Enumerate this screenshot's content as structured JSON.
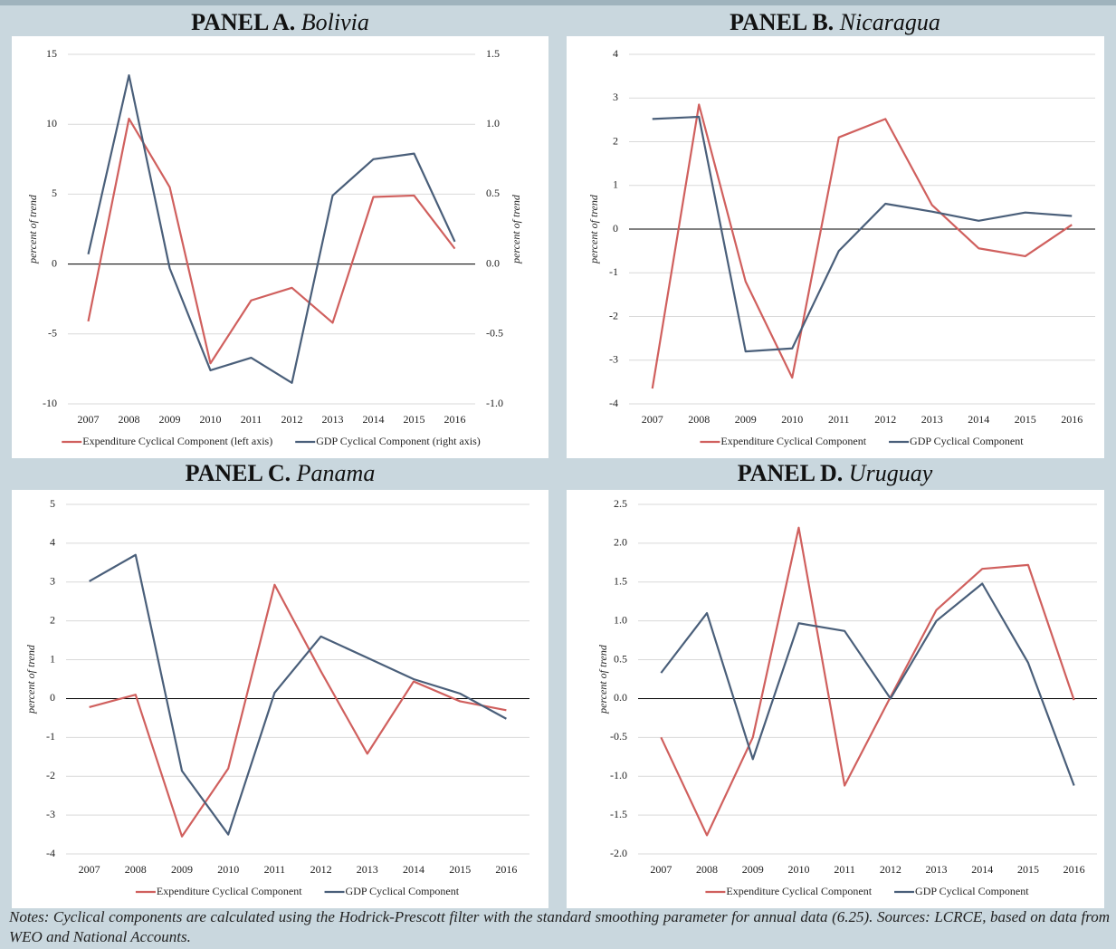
{
  "chart_data": [
    {
      "type": "line",
      "panel": "PANEL A.",
      "title": "Bolivia",
      "categories": [
        "2007",
        "2008",
        "2009",
        "2010",
        "2011",
        "2012",
        "2013",
        "2014",
        "2015",
        "2016"
      ],
      "ylabel": "percent of trend",
      "ylim": [
        -10,
        15
      ],
      "yticks": [
        -10,
        -5,
        0,
        5,
        10,
        15
      ],
      "y2label": "percent of trend",
      "y2lim": [
        -1,
        1.5
      ],
      "y2ticks": [
        {
          "value": -1,
          "label": "-1.0"
        },
        -0.5,
        {
          "value": 0,
          "label": "0.0"
        },
        0.5,
        {
          "value": 1,
          "label": "1.0"
        },
        1.5
      ],
      "grid": true,
      "series": [
        {
          "name": "Expenditure Cyclical Component (left axis)",
          "color": "#d0605e",
          "values": [
            -4.1,
            10.4,
            5.5,
            -7.1,
            -2.6,
            -1.7,
            -4.2,
            4.8,
            4.9,
            1.1
          ]
        },
        {
          "name": "GDP Cyclical Component (right axis)",
          "color": "#4a5f7a",
          "axis": "y2",
          "values": [
            0.07,
            1.35,
            -0.03,
            -0.76,
            -0.67,
            -0.85,
            0.49,
            0.75,
            0.79,
            0.16
          ]
        }
      ]
    },
    {
      "type": "line",
      "panel": "PANEL B.",
      "title": "Nicaragua",
      "categories": [
        "2007",
        "2008",
        "2009",
        "2010",
        "2011",
        "2012",
        "2013",
        "2014",
        "2015",
        "2016"
      ],
      "ylabel": "percent of trend",
      "ylim": [
        -4,
        4
      ],
      "yticks": [
        -4,
        -3,
        -2,
        -1,
        0,
        1,
        2,
        3,
        4
      ],
      "grid": true,
      "series": [
        {
          "name": "Expenditure Cyclical Component",
          "color": "#d0605e",
          "values": [
            -3.65,
            2.85,
            -1.2,
            -3.4,
            2.1,
            2.52,
            0.55,
            -0.44,
            -0.62,
            0.1
          ]
        },
        {
          "name": "GDP Cyclical Component",
          "color": "#4a5f7a",
          "values": [
            2.52,
            2.57,
            -2.8,
            -2.73,
            -0.5,
            0.58,
            0.4,
            0.19,
            0.38,
            0.3
          ]
        }
      ]
    },
    {
      "type": "line",
      "panel": "PANEL C.",
      "title": "Panama",
      "categories": [
        "2007",
        "2008",
        "2009",
        "2010",
        "2011",
        "2012",
        "2013",
        "2014",
        "2015",
        "2016"
      ],
      "ylabel": "percent of trend",
      "ylim": [
        -4,
        5
      ],
      "yticks": [
        -4,
        -3,
        -2,
        -1,
        0,
        1,
        2,
        3,
        4,
        5
      ],
      "grid": true,
      "series": [
        {
          "name": "Expenditure Cyclical Component",
          "color": "#d0605e",
          "values": [
            -0.22,
            0.1,
            -3.55,
            -1.8,
            2.93,
            0.7,
            -1.42,
            0.44,
            -0.07,
            -0.3
          ]
        },
        {
          "name": "GDP Cyclical Component",
          "color": "#4a5f7a",
          "values": [
            3.02,
            3.7,
            -1.86,
            -3.5,
            0.15,
            1.6,
            1.05,
            0.5,
            0.13,
            -0.52
          ]
        }
      ]
    },
    {
      "type": "line",
      "panel": "PANEL D.",
      "title": "Uruguay",
      "categories": [
        "2007",
        "2008",
        "2009",
        "2010",
        "2011",
        "2012",
        "2013",
        "2014",
        "2015",
        "2016"
      ],
      "ylabel": "percent of trend",
      "ylim": [
        -2,
        2.5
      ],
      "yticks": [
        {
          "value": -2,
          "label": "-2.0"
        },
        -1.5,
        {
          "value": -1,
          "label": "-1.0"
        },
        -0.5,
        {
          "value": 0,
          "label": "0.0"
        },
        0.5,
        {
          "value": 1,
          "label": "1.0"
        },
        1.5,
        {
          "value": 2,
          "label": "2.0"
        },
        2.5
      ],
      "grid": true,
      "series": [
        {
          "name": "Expenditure Cyclical Component",
          "color": "#d0605e",
          "values": [
            -0.5,
            -1.76,
            -0.5,
            2.2,
            -1.12,
            0.02,
            1.14,
            1.67,
            1.72,
            -0.02
          ]
        },
        {
          "name": "GDP Cyclical Component",
          "color": "#4a5f7a",
          "values": [
            0.33,
            1.1,
            -0.78,
            0.97,
            0.87,
            0.0,
            1.0,
            1.48,
            0.46,
            -1.12
          ]
        }
      ]
    }
  ],
  "notes": "Notes: Cyclical components are calculated using the Hodrick-Prescott filter with the standard smoothing parameter for annual data (6.25). Sources: LCRCE, based on data from WEO and National Accounts."
}
